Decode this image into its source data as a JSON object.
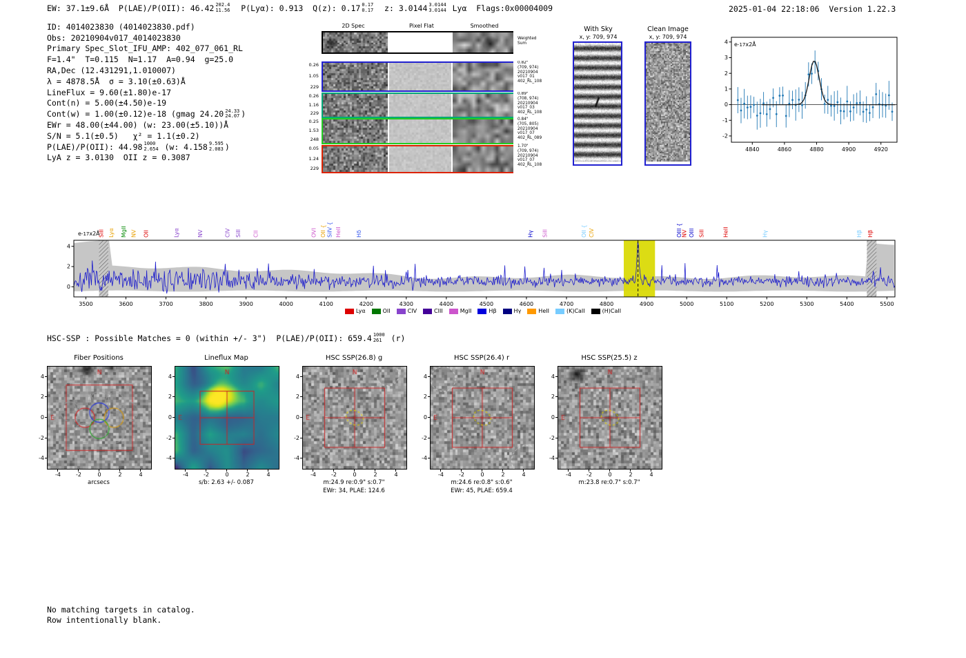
{
  "header": {
    "left_segments": [
      {
        "t": "EW: 37.1±9.6Å  P(LAE)/P(OII): 46.42"
      },
      {
        "up": "202.4",
        "dn": "11.56"
      },
      {
        "t": "  P(Lyα): 0.913  Q(z): 0.17"
      },
      {
        "up": "0.17",
        "dn": "0.17"
      },
      {
        "t": "  z: 3.0144"
      },
      {
        "up": "3.0144",
        "dn": "3.0144"
      },
      {
        "t": " Lyα  Flags:0x00004009"
      }
    ],
    "right": "2025-01-04 22:18:06  Version 1.22.3"
  },
  "info_block": {
    "lines": [
      [
        {
          "t": "ID: 4014023830 (4014023830.pdf)"
        }
      ],
      [
        {
          "t": "Obs: 20210904v017_4014023830"
        }
      ],
      [
        {
          "t": "Primary Spec_Slot_IFU_AMP: 402_077_061_RL"
        }
      ],
      [
        {
          "t": "F=1.4\"  T=0.115  N=1.17  A=0.94  g=25.0"
        }
      ],
      [
        {
          "t": "RA,Dec (12.431291,1.010007)"
        }
      ],
      [
        {
          "t": "λ = 4878.5Å  σ = 3.10(±0.63)Å"
        }
      ],
      [
        {
          "t": "LineFlux = 9.60(±1.80)e-17"
        }
      ],
      [
        {
          "t": "Cont(n) = 5.00(±4.50)e-19"
        }
      ],
      [
        {
          "t": "Cont(w) = 1.00(±0.12)e-18 (gmag 24.20"
        },
        {
          "up": "24.33",
          "dn": "24.07"
        },
        {
          "t": ")"
        }
      ],
      [
        {
          "t": "EWr = 48.00(±44.00) (w: 23.00(±5.10))Å"
        }
      ],
      [
        {
          "t": "S/N = 5.1(±0.5)   χ² = 1.1(±0.2)"
        }
      ],
      [
        {
          "t": "P(LAE)/P(OII): 44.98"
        },
        {
          "up": "1000",
          "dn": "2.654"
        },
        {
          "t": " (w: 4.158"
        },
        {
          "up": "9.595",
          "dn": "2.083"
        },
        {
          "t": ")"
        }
      ],
      [
        {
          "t": "LyA z = 3.0130  OII z = 0.3087"
        }
      ]
    ]
  },
  "spec2d": {
    "col_headers": [
      "2D Spec",
      "Pixel Flat",
      "Smoothed"
    ],
    "rows": [
      {
        "border": "#000000",
        "left": [],
        "right": "Weighted\nSum",
        "sum": true
      },
      {
        "border": "#2020d0",
        "left": [
          "0.26",
          "1.05",
          "229"
        ],
        "right": "0.82\"\n(709, 974)\n20210904\nv017_01\n402_RL_108"
      },
      {
        "border": "#00a878",
        "left": [
          "0.26",
          "1.16",
          "229"
        ],
        "right": "0.89\"\n(708, 974)\n20210904\nv017_03\n402_RL_108"
      },
      {
        "border": "#22cc22",
        "left": [
          "0.25",
          "1.53",
          "248"
        ],
        "right": "0.84\"\n(705, 805)\n20210904\nv017_07\n402_RL_089"
      },
      {
        "border": "#dd2200",
        "left": [
          "0.05",
          "1.24",
          "229"
        ],
        "right": "1.70\"\n(709, 974)\n20210904\nv017_07\n402_RL_108"
      }
    ]
  },
  "sky_panels": {
    "with_sky": {
      "title": "With Sky",
      "subtitle": "x, y: 709, 974"
    },
    "clean": {
      "title": "Clean Image",
      "subtitle": "x, y: 709, 974"
    }
  },
  "hsc_line_segments": [
    {
      "t": "HSC-SSP : Possible Matches = 0 (within +/- 3\")  P(LAE)/P(OII): 659.4"
    },
    {
      "up": "1000",
      "dn": "261"
    },
    {
      "t": " (r)"
    }
  ],
  "footer": {
    "lines": [
      "No matching targets in catalog.",
      "Row intentionally blank."
    ]
  },
  "chart_data": [
    {
      "type": "scatter+fit",
      "title": "line fit zoom",
      "ylabel_segments": [
        {
          "t": "e"
        },
        {
          "s": "-17"
        },
        {
          "t": "x2Å"
        }
      ],
      "xlim": [
        4827,
        4930
      ],
      "ylim": [
        -2.4,
        4.3
      ],
      "xticks": [
        4840,
        4860,
        4880,
        4900,
        4920
      ],
      "yticks": [
        -2,
        -1,
        0,
        1,
        2,
        3,
        4
      ],
      "fit": {
        "center": 4878.5,
        "sigma": 3.1,
        "amplitude": 2.8
      },
      "point_color": "#1f77b4",
      "fit_color": "#1a1a1a",
      "noise": {
        "seed": 42,
        "step": 2,
        "sigma": 0.62,
        "errbar_min": 0.5,
        "errbar_rand": 0.5
      }
    },
    {
      "type": "line",
      "title": "full spectrum",
      "ylabel_segments": [
        {
          "t": "e"
        },
        {
          "s": "-17"
        },
        {
          "t": "x2Å"
        }
      ],
      "xlim": [
        3470,
        5520
      ],
      "ylim": [
        -1.0,
        4.6
      ],
      "xticks": [
        3500,
        3600,
        3700,
        3800,
        3900,
        4000,
        4100,
        4200,
        4300,
        4400,
        4500,
        4600,
        4700,
        4800,
        4900,
        5000,
        5100,
        5200,
        5300,
        5400,
        5500
      ],
      "yticks": [
        0,
        2,
        4
      ],
      "line_color": "#1a1acc",
      "emission_line": {
        "wavelength": 4878.5,
        "peak": 4.0
      },
      "highlight_band": [
        4843,
        4921
      ],
      "highlight_color": "#d9d900",
      "hatch_bands": [
        [
          3533,
          3556
        ],
        [
          5450,
          5474
        ]
      ],
      "noise": {
        "seed": 7,
        "step": 2,
        "base": 0.55,
        "sigma_blue": 0.95,
        "sigma_mid": 0.6,
        "sigma_red": 0.45
      },
      "line_labels": [
        {
          "x": 3548,
          "t": "SiII",
          "c": "#dd0000"
        },
        {
          "x": 3573,
          "t": "Lyα",
          "c": "#e8a000"
        },
        {
          "x": 3604,
          "t": "MgII",
          "c": "#008800"
        },
        {
          "x": 3629,
          "t": "NV",
          "c": "#e8a000"
        },
        {
          "x": 3660,
          "t": "OII",
          "c": "#dd0000"
        },
        {
          "x": 3736,
          "t": "Lyα",
          "c": "#8844cc"
        },
        {
          "x": 3796,
          "t": "NV",
          "c": "#8844cc"
        },
        {
          "x": 3864,
          "t": "CIV",
          "c": "#8844cc"
        },
        {
          "x": 3890,
          "t": "SiII",
          "c": "#8844cc"
        },
        {
          "x": 3934,
          "t": "CII",
          "c": "#cc55cc"
        },
        {
          "x": 4079,
          "t": "OVI",
          "c": "#cc55cc"
        },
        {
          "x": 4102,
          "t": "OII {",
          "c": "#e8a000"
        },
        {
          "x": 4119,
          "t": "SiIV {",
          "c": "#3355ee"
        },
        {
          "x": 4140,
          "t": "HeII",
          "c": "#cc55cc"
        },
        {
          "x": 4192,
          "t": "Hδ",
          "c": "#3355ee"
        },
        {
          "x": 4620,
          "t": "Hγ",
          "c": "#0000cc"
        },
        {
          "x": 4656,
          "t": "SiII",
          "c": "#cc55cc"
        },
        {
          "x": 4753,
          "t": "OII {",
          "c": "#77ccff"
        },
        {
          "x": 4772,
          "t": "CIV",
          "c": "#e8a000"
        },
        {
          "x": 4991,
          "t": "OIII {",
          "c": "#0000cc"
        },
        {
          "x": 5004,
          "t": "NV",
          "c": "#dd0000"
        },
        {
          "x": 5022,
          "t": "OIII",
          "c": "#0000cc"
        },
        {
          "x": 5047,
          "t": "SiII",
          "c": "#dd0000"
        },
        {
          "x": 5107,
          "t": "HeII",
          "c": "#dd0000"
        },
        {
          "x": 5206,
          "t": "Hγ",
          "c": "#77ccff"
        },
        {
          "x": 5441,
          "t": "Hβ",
          "c": "#77ccff"
        },
        {
          "x": 5468,
          "t": "Hβ",
          "c": "#dd0000"
        }
      ],
      "legend": [
        {
          "label": "Lyα",
          "color": "#dd0000"
        },
        {
          "label": "OII",
          "color": "#007700"
        },
        {
          "label": "CIV",
          "color": "#8844cc"
        },
        {
          "label": "CIII",
          "color": "#440099"
        },
        {
          "label": "MgII",
          "color": "#cc55cc"
        },
        {
          "label": "Hβ",
          "color": "#0000dd"
        },
        {
          "label": "Hγ",
          "color": "#000080"
        },
        {
          "label": "HeII",
          "color": "#ff9900"
        },
        {
          "label": "(K)CaII",
          "color": "#77ccff"
        },
        {
          "label": "(H)CaII",
          "color": "#000000"
        }
      ]
    }
  ],
  "cutouts": {
    "axis": {
      "ticks": [
        -4,
        -2,
        0,
        2,
        4
      ],
      "range": [
        -5,
        5
      ]
    },
    "panels": [
      {
        "title": "Fiber Positions",
        "type": "fibers",
        "xlabel": "arcsecs",
        "caption1": "",
        "caption2": ""
      },
      {
        "title": "Lineflux Map",
        "type": "flux",
        "xlabel": "",
        "caption1": "s/b: 2.63 +/- 0.087",
        "caption2": ""
      },
      {
        "title": "HSC SSP(26.8) g",
        "type": "hsc-g",
        "xlabel": "",
        "caption1": "m:24.9 re:0.9\" s:0.7\"",
        "caption2": "EWr: 34, PLAE: 124.6"
      },
      {
        "title": "HSC SSP(26.4) r",
        "type": "hsc-r",
        "xlabel": "",
        "caption1": "m:24.6 re:0.8\" s:0.6\"",
        "caption2": "EWr: 45, PLAE: 659.4"
      },
      {
        "title": "HSC SSP(25.5) z",
        "type": "hsc-z",
        "xlabel": "",
        "caption1": "m:23.8 re:0.7\" s:0.7\"",
        "caption2": ""
      }
    ]
  }
}
